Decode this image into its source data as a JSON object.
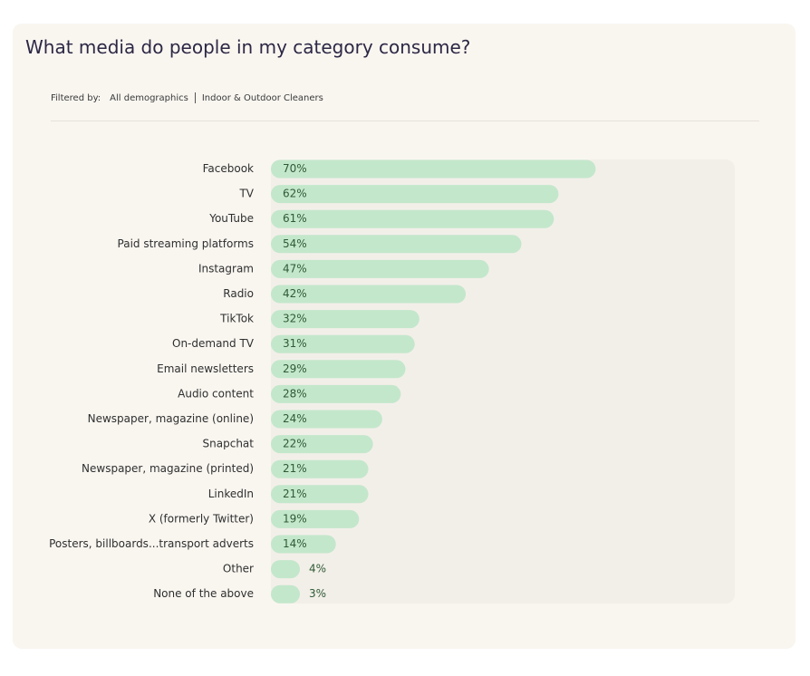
{
  "header": {
    "title": "What media do people in my category consume?",
    "filter_label": "Filtered by:",
    "filters": [
      "All demographics",
      "Indoor & Outdoor Cleaners"
    ]
  },
  "colors": {
    "card_bg": "#f9f6f0",
    "track_bg": "#f2efe9",
    "bar_fill": "#c3e7cb",
    "value_text": "#2f5a36",
    "label_text": "#2f2f2f"
  },
  "chart_data": {
    "type": "bar",
    "orientation": "horizontal",
    "categories": [
      "Facebook",
      "TV",
      "YouTube",
      "Paid streaming platforms",
      "Instagram",
      "Radio",
      "TikTok",
      "On-demand TV",
      "Email newsletters",
      "Audio content",
      "Newspaper, magazine (online)",
      "Snapchat",
      "Newspaper, magazine (printed)",
      "LinkedIn",
      "X (formerly Twitter)",
      "Posters, billboards...transport adverts",
      "Other",
      "None of the above"
    ],
    "values": [
      70,
      62,
      61,
      54,
      47,
      42,
      32,
      31,
      29,
      28,
      24,
      22,
      21,
      21,
      19,
      14,
      4,
      3
    ],
    "value_labels": [
      "70%",
      "62%",
      "61%",
      "54%",
      "47%",
      "42%",
      "32%",
      "31%",
      "29%",
      "28%",
      "24%",
      "22%",
      "21%",
      "21%",
      "19%",
      "14%",
      "4%",
      "3%"
    ],
    "xlim": [
      0,
      100
    ]
  }
}
